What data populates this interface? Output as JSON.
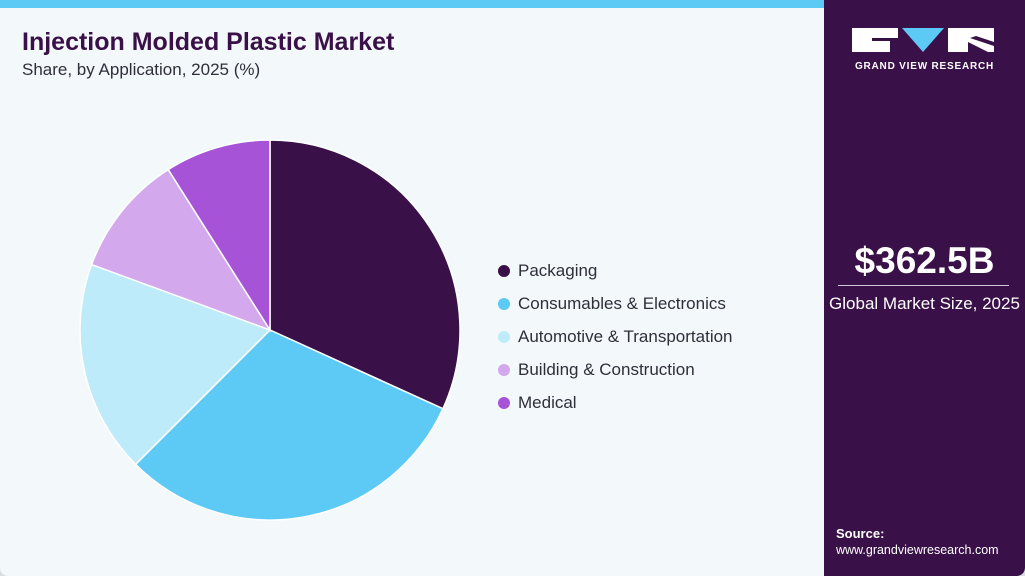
{
  "header": {
    "title": "Injection Molded Plastic Market",
    "subtitle": "Share, by Application, 2025 (%)"
  },
  "legend": [
    {
      "label": "Packaging",
      "color": "#3a1048"
    },
    {
      "label": "Consumables & Electronics",
      "color": "#5ccaf5"
    },
    {
      "label": "Automotive & Transportation",
      "color": "#bdebfa"
    },
    {
      "label": "Building & Construction",
      "color": "#d4a8ec"
    },
    {
      "label": "Medical",
      "color": "#a653d8"
    }
  ],
  "sidebar": {
    "brand": "GRAND VIEW RESEARCH",
    "market_size": "$362.5B",
    "market_size_label": "Global Market Size, 2025",
    "source_label": "Source:",
    "source_url": "www.grandviewresearch.com"
  },
  "colors": {
    "accent": "#5ccaf5",
    "brand_dark": "#3a1048",
    "background": "#f3f8fb"
  },
  "chart_data": {
    "type": "pie",
    "title": "Injection Molded Plastic Market",
    "subtitle": "Share, by Application, 2025 (%)",
    "categories": [
      "Packaging",
      "Consumables & Electronics",
      "Automotive & Transportation",
      "Building & Construction",
      "Medical"
    ],
    "values": [
      31.8,
      30.7,
      18.1,
      10.4,
      9.0
    ],
    "colors": [
      "#3a1048",
      "#5ccaf5",
      "#bdebfa",
      "#d4a8ec",
      "#a653d8"
    ],
    "start_angle": "12 o'clock, clockwise",
    "legend_position": "right",
    "unit": "%"
  }
}
